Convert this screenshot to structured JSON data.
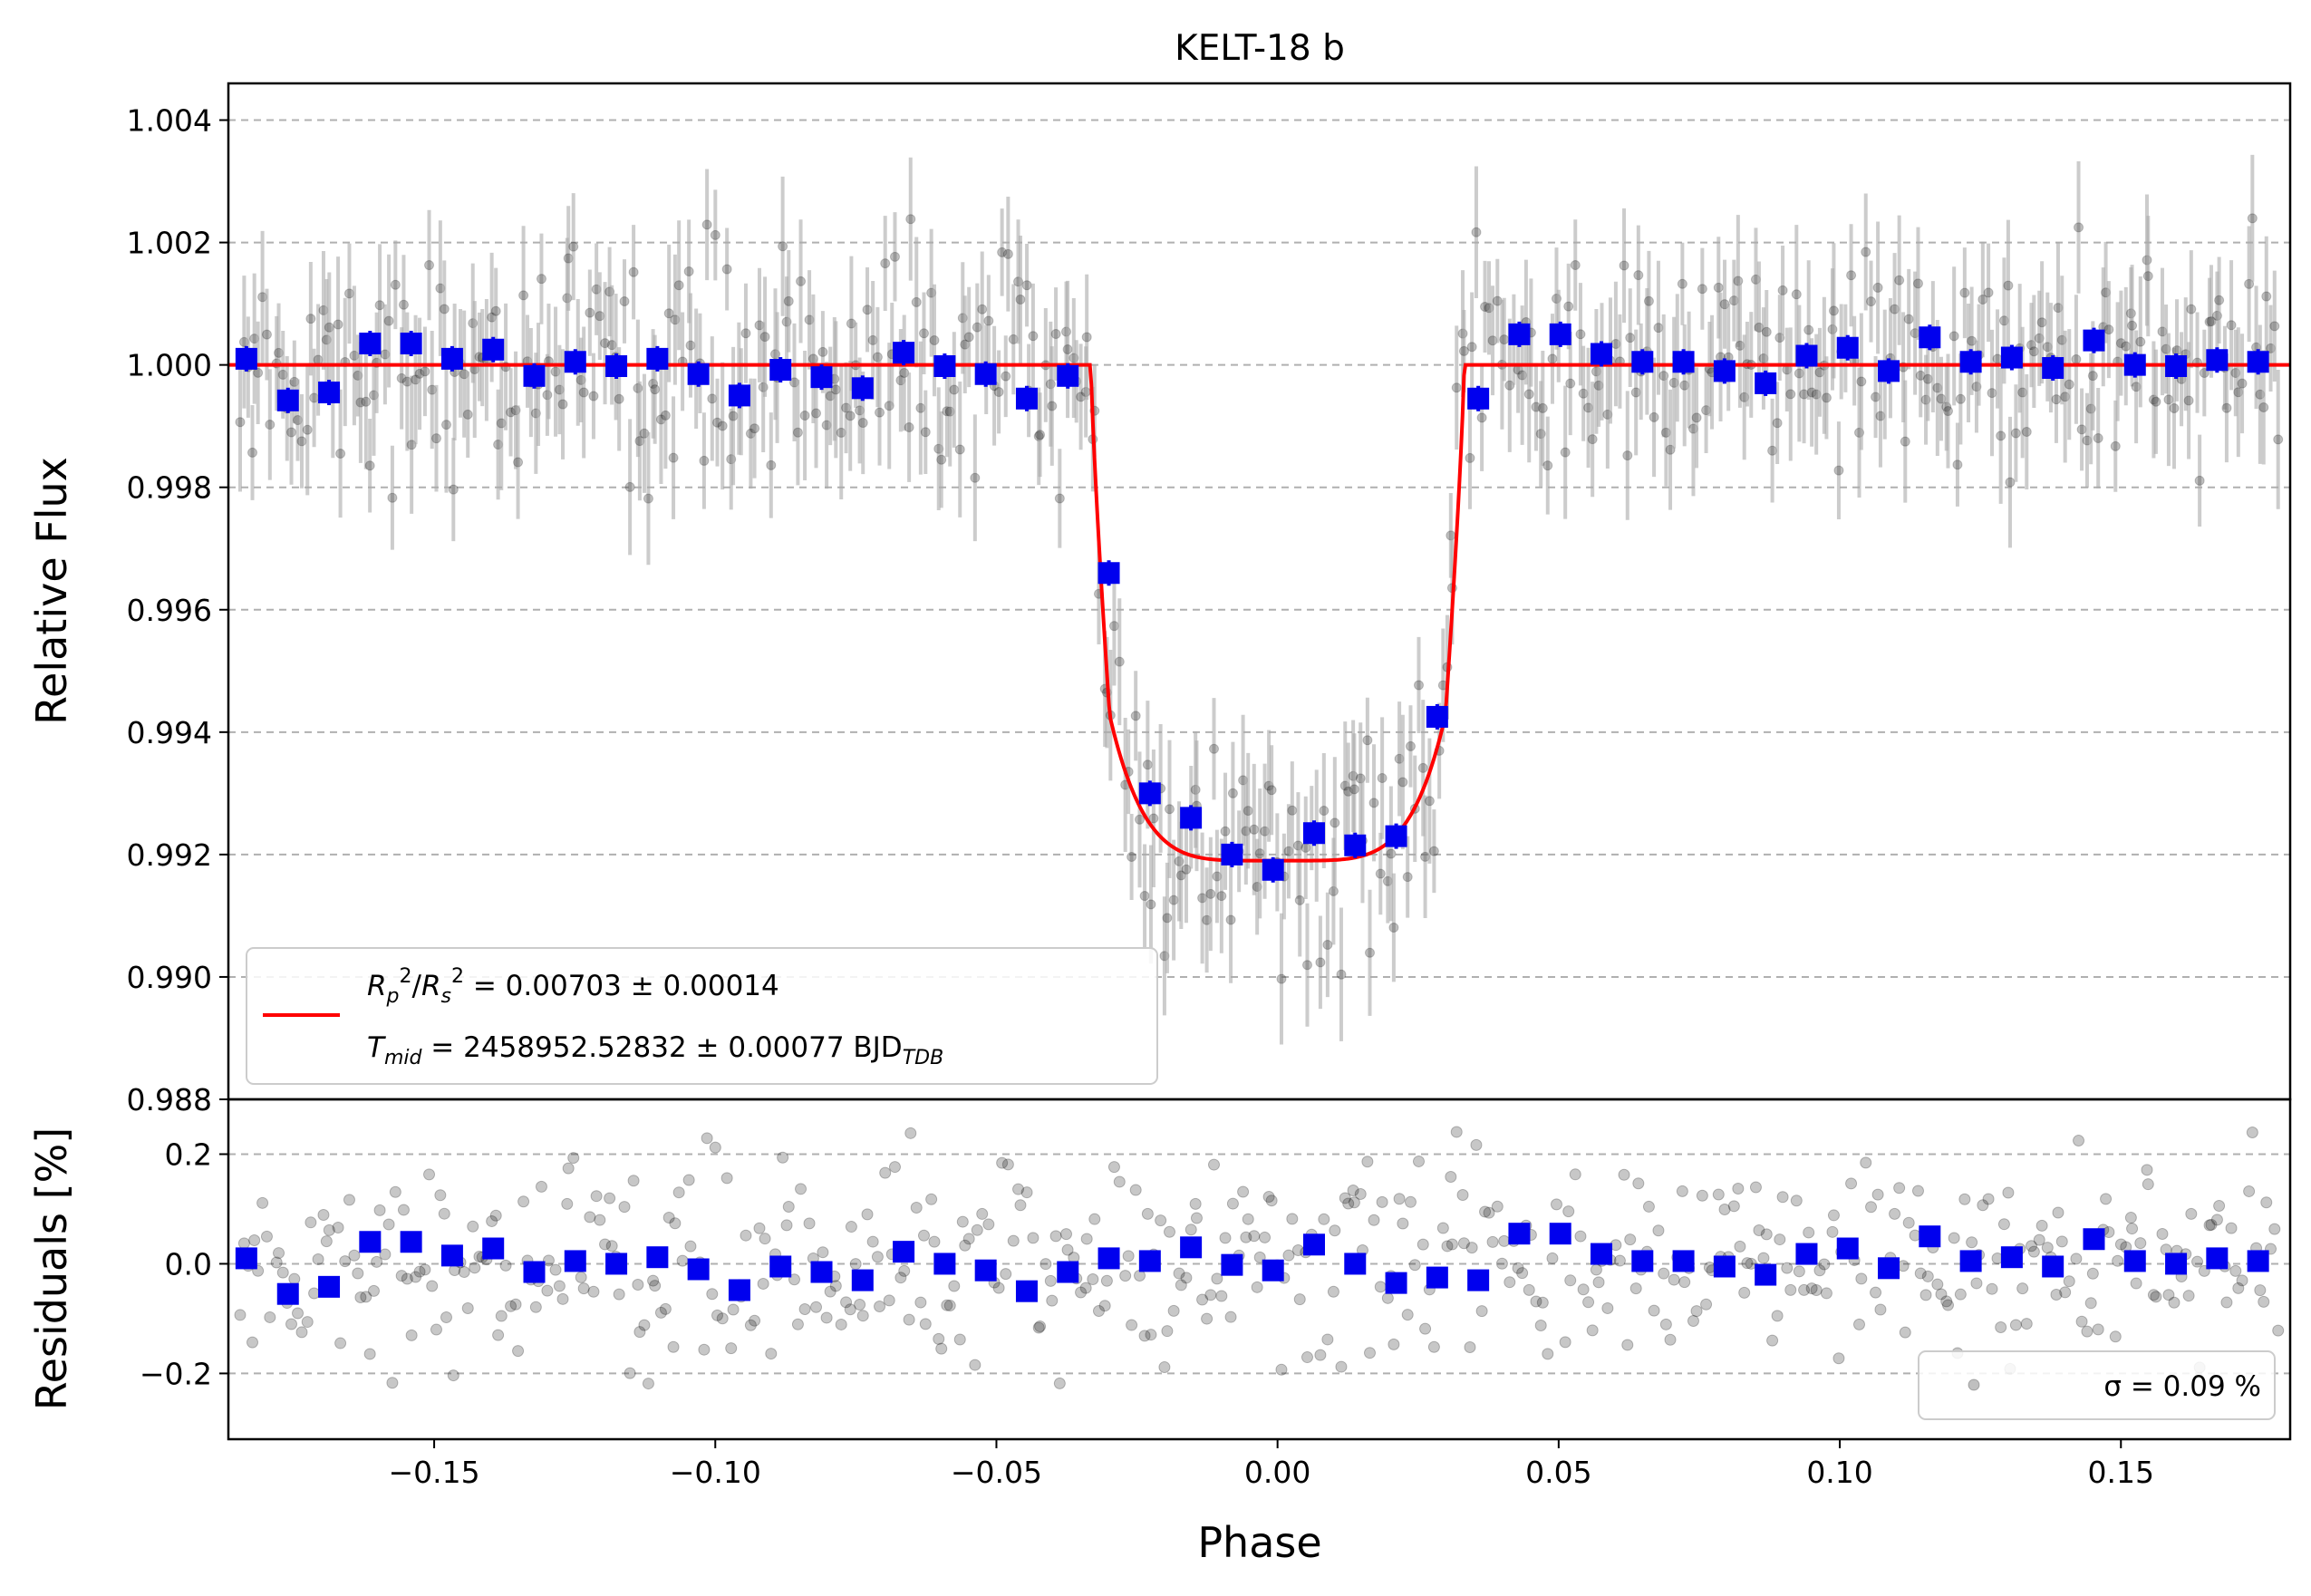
{
  "chart_data": [
    {
      "type": "scatter",
      "title": "KELT-18 b",
      "xlabel": "Phase",
      "ylabel": "Relative Flux",
      "xlim": [
        -0.1866,
        0.1801
      ],
      "ylim": [
        0.988,
        1.0046
      ],
      "grid": "horizontal dashed",
      "xticks": [
        -0.15,
        -0.1,
        -0.05,
        0.0,
        0.05,
        0.1,
        0.15
      ],
      "xtick_labels": [
        "−0.15",
        "−0.10",
        "−0.05",
        "0.00",
        "0.05",
        "0.10",
        "0.15"
      ],
      "yticks": [
        0.988,
        0.99,
        0.992,
        0.994,
        0.996,
        0.998,
        1.0,
        1.002,
        1.004
      ],
      "ytick_labels": [
        "0.988",
        "0.990",
        "0.992",
        "0.994",
        "0.996",
        "0.998",
        "1.000",
        "1.002",
        "1.004"
      ],
      "legend": {
        "placement": "lower-left",
        "line1": "Rₚ²/Rₛ² = 0.00703 ± 0.00014",
        "line2": "T_mid = 2458952.52832 ± 0.00077 BJD_TDB"
      },
      "model": {
        "color": "#ff0000",
        "depth": 0.0081,
        "t1": 0.0332,
        "t2": 0.0298
      },
      "raw_points": {
        "color": "#000000",
        "alpha": 0.25,
        "error_color": "#aaaaaa",
        "error": 0.00095,
        "count": 520
      },
      "binned": {
        "color": "#0000ee",
        "x": [
          -0.1834,
          -0.176,
          -0.1687,
          -0.1614,
          -0.1541,
          -0.1468,
          -0.1395,
          -0.1322,
          -0.1249,
          -0.1176,
          -0.1103,
          -0.103,
          -0.0957,
          -0.0884,
          -0.0811,
          -0.0738,
          -0.0665,
          -0.0592,
          -0.0519,
          -0.0446,
          -0.0373,
          -0.03,
          -0.0227,
          -0.0154,
          -0.0081,
          -0.0008,
          0.0065,
          0.0138,
          0.0211,
          0.0284,
          0.0357,
          0.043,
          0.0503,
          0.0576,
          0.0649,
          0.0722,
          0.0795,
          0.0868,
          0.0941,
          0.1014,
          0.1087,
          0.116,
          0.1233,
          0.1306,
          0.1379,
          0.1452,
          0.1525,
          0.1598,
          0.1671,
          0.1744
        ],
        "y": [
          1.0001,
          0.99942,
          0.99955,
          1.00035,
          1.00035,
          1.0001,
          1.00025,
          0.99982,
          1.00005,
          0.99998,
          1.0001,
          0.99985,
          0.9995,
          0.99992,
          0.9998,
          0.99962,
          1.0002,
          0.99998,
          0.99985,
          0.99945,
          0.99982,
          0.9966,
          0.993,
          0.9926,
          0.992,
          0.99175,
          0.99235,
          0.99215,
          0.9923,
          0.99425,
          0.99945,
          1.0005,
          1.0005,
          1.00018,
          1.00005,
          1.00005,
          0.9999,
          0.9997,
          1.00015,
          1.00028,
          0.9999,
          1.00045,
          1.00005,
          1.00012,
          0.99995,
          1.0004,
          1.0,
          0.99998,
          1.00008,
          1.00005
        ]
      }
    },
    {
      "type": "scatter",
      "xlabel": "Phase",
      "ylabel": "Residuals [%]",
      "xlim": [
        -0.1866,
        0.1801
      ],
      "ylim": [
        -0.32,
        0.3
      ],
      "grid": "horizontal dashed",
      "yticks": [
        -0.2,
        0.0,
        0.2
      ],
      "ytick_labels": [
        "−0.2",
        "0.0",
        "0.2"
      ],
      "legend": {
        "placement": "lower-right",
        "label": "σ = 0.09 %"
      },
      "raw_points": {
        "color": "#000000",
        "alpha": 0.25,
        "sigma": 0.09,
        "count": 520
      },
      "binned": {
        "color": "#0000ee",
        "x": [
          -0.1834,
          -0.176,
          -0.1687,
          -0.1614,
          -0.1541,
          -0.1468,
          -0.1395,
          -0.1322,
          -0.1249,
          -0.1176,
          -0.1103,
          -0.103,
          -0.0957,
          -0.0884,
          -0.0811,
          -0.0738,
          -0.0665,
          -0.0592,
          -0.0519,
          -0.0446,
          -0.0373,
          -0.03,
          -0.0227,
          -0.0154,
          -0.0081,
          -0.0008,
          0.0065,
          0.0138,
          0.0211,
          0.0284,
          0.0357,
          0.043,
          0.0503,
          0.0576,
          0.0649,
          0.0722,
          0.0795,
          0.0868,
          0.0941,
          0.1014,
          0.1087,
          0.116,
          0.1233,
          0.1306,
          0.1379,
          0.1452,
          0.1525,
          0.1598,
          0.1671,
          0.1744
        ],
        "y": [
          0.01,
          -0.055,
          -0.042,
          0.04,
          0.04,
          0.015,
          0.028,
          -0.015,
          0.005,
          0.0,
          0.012,
          -0.01,
          -0.048,
          -0.005,
          -0.015,
          -0.03,
          0.022,
          0.0,
          -0.012,
          -0.05,
          -0.015,
          0.01,
          0.005,
          0.03,
          -0.002,
          -0.012,
          0.035,
          0.0,
          -0.035,
          -0.025,
          -0.03,
          0.055,
          0.055,
          0.018,
          0.005,
          0.005,
          -0.005,
          -0.02,
          0.018,
          0.028,
          -0.008,
          0.05,
          0.005,
          0.012,
          -0.005,
          0.045,
          0.005,
          0.0,
          0.01,
          0.005
        ]
      }
    }
  ]
}
